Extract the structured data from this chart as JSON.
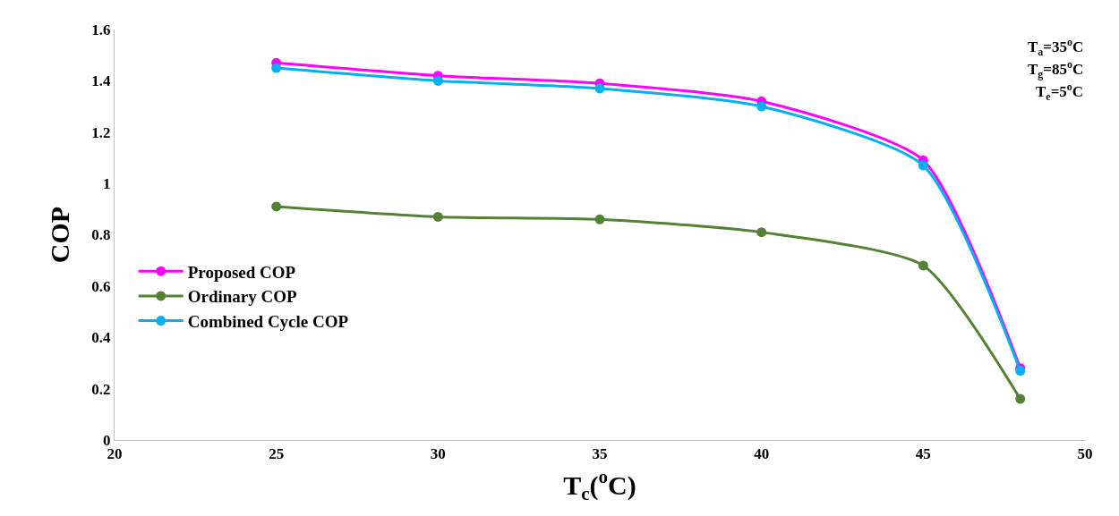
{
  "chart_data": {
    "type": "line",
    "xlabel": "T$_{c}$($^{o}$C)",
    "ylabel": "COP",
    "x": [
      25,
      30,
      35,
      40,
      45,
      48
    ],
    "series": [
      {
        "name": "Proposed COP",
        "color": "#ff00ff",
        "values": [
          1.47,
          1.42,
          1.39,
          1.32,
          1.09,
          0.28
        ]
      },
      {
        "name": "Ordinary COP",
        "color": "#548235",
        "values": [
          0.91,
          0.87,
          0.86,
          0.81,
          0.68,
          0.16
        ]
      },
      {
        "name": "Combined Cycle COP",
        "color": "#00b0f0",
        "values": [
          1.45,
          1.4,
          1.37,
          1.3,
          1.07,
          0.27
        ]
      }
    ],
    "xlim": [
      20,
      50
    ],
    "xticks": [
      20,
      25,
      30,
      35,
      40,
      45,
      50
    ],
    "ylim": [
      0,
      1.6
    ],
    "yticks": [
      0,
      {
        "value": 0.2,
        "label": "0.2"
      },
      {
        "value": 0.4,
        "label": "0.4"
      },
      {
        "value": 0.6,
        "label": "0.6"
      },
      {
        "value": 0.8,
        "label": "0.8"
      },
      1,
      {
        "value": 1.2,
        "label": "1.2"
      },
      {
        "value": 1.4,
        "label": "1.4"
      },
      {
        "value": 1.6,
        "label": "1.6"
      }
    ],
    "annotations": [
      "T$_{a}$=35$^{o}$C",
      "T$_{g}$=85$^{o}$C",
      "T$_{e}$=5$^{o}$C"
    ],
    "legend": "left",
    "marker": "circle",
    "line_style": "solid"
  }
}
